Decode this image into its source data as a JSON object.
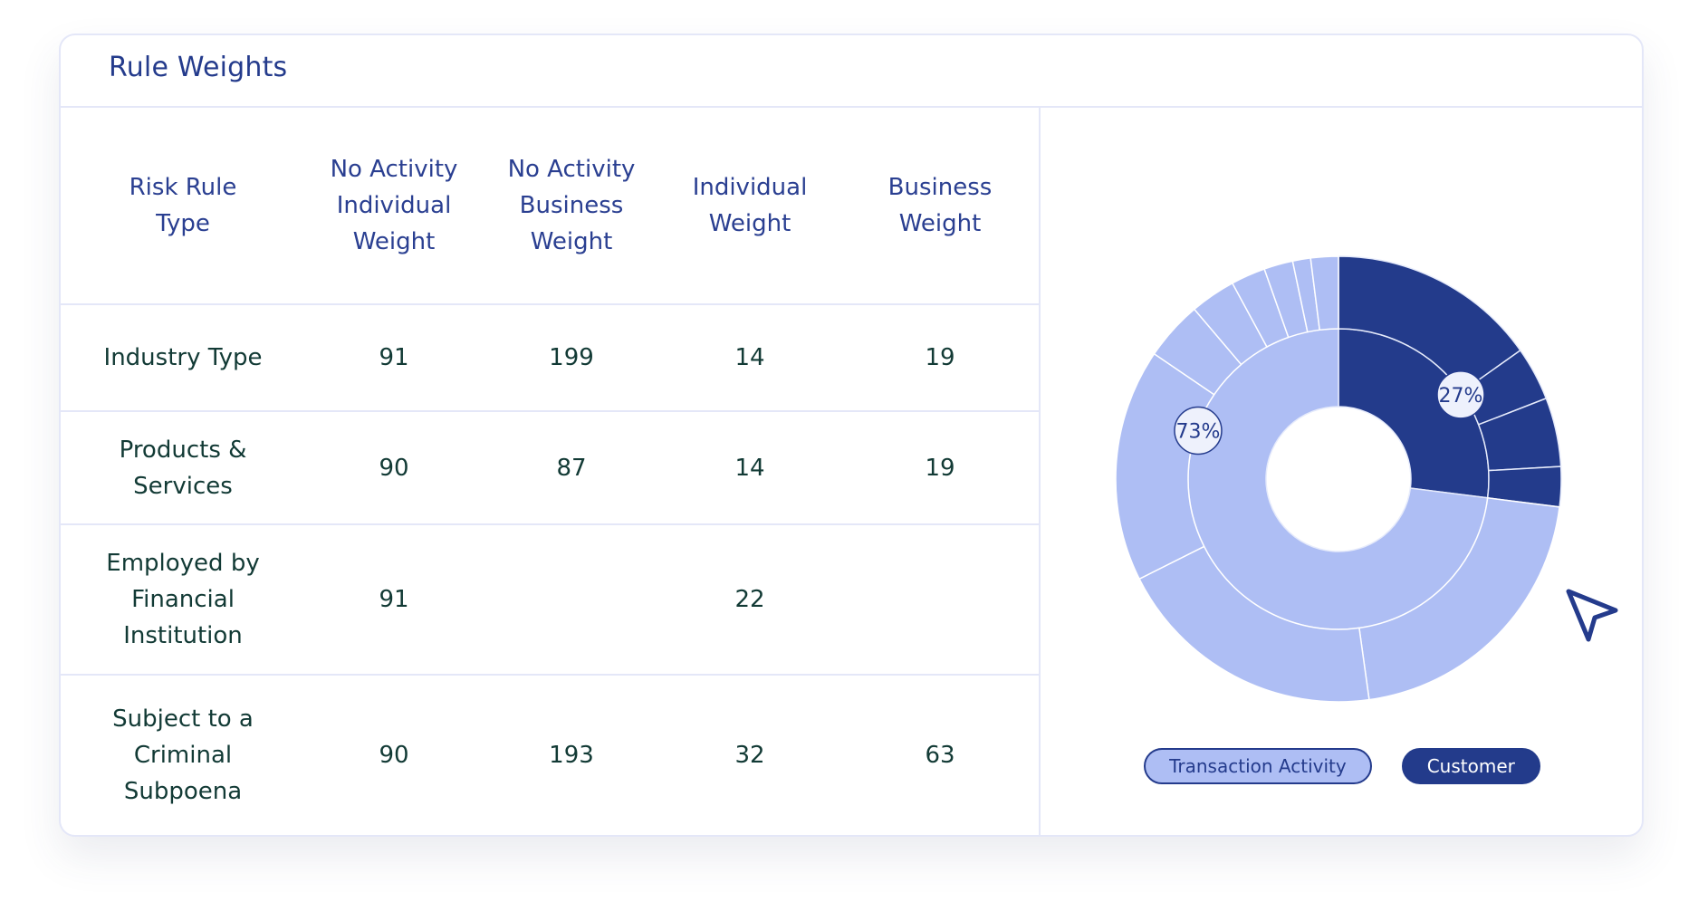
{
  "card": {
    "title": "Rule Weights"
  },
  "table": {
    "headers": [
      [
        "Risk Rule",
        "Type"
      ],
      [
        "No Activity",
        "Individual",
        "Weight"
      ],
      [
        "No Activity",
        "Business",
        "Weight"
      ],
      [
        "Individual",
        "Weight"
      ],
      [
        "Business",
        "Weight"
      ]
    ],
    "rows": [
      {
        "type": [
          "Industry Type"
        ],
        "values": [
          "91",
          "199",
          "14",
          "19"
        ]
      },
      {
        "type": [
          "Products &",
          "Services"
        ],
        "values": [
          "90",
          "87",
          "14",
          "19"
        ]
      },
      {
        "type": [
          "Employed by",
          "Financial",
          "Institution"
        ],
        "values": [
          "91",
          "",
          "22",
          ""
        ]
      },
      {
        "type": [
          "Subject to a",
          "Criminal",
          "Subpoena"
        ],
        "values": [
          "90",
          "193",
          "32",
          "63"
        ]
      }
    ]
  },
  "chart_data": {
    "type": "pie",
    "subtype": "sunburst",
    "series": [
      {
        "name": "Customer",
        "color": "#233b8b",
        "inner_value": 27,
        "inner_label": "27%",
        "outer_segments": [
          15.2,
          3.9,
          5.0,
          2.9
        ]
      },
      {
        "name": "Transaction Activity",
        "color": "#aebef4",
        "inner_value": 73,
        "inner_label": "73%",
        "outer_segments": [
          20.8,
          19.8,
          16.9,
          4.3,
          3.3,
          2.5,
          2.1,
          1.3,
          2.0
        ]
      }
    ],
    "separator_color": "#ffffff",
    "inner_separator_color": "#e6ebfb",
    "label_color": "#243b8c",
    "label_background": "#eef1fc",
    "legend": [
      "Transaction Activity",
      "Customer"
    ],
    "legend_position": "bottom"
  },
  "icons": {
    "cursor": "cursor-arrow-icon"
  }
}
